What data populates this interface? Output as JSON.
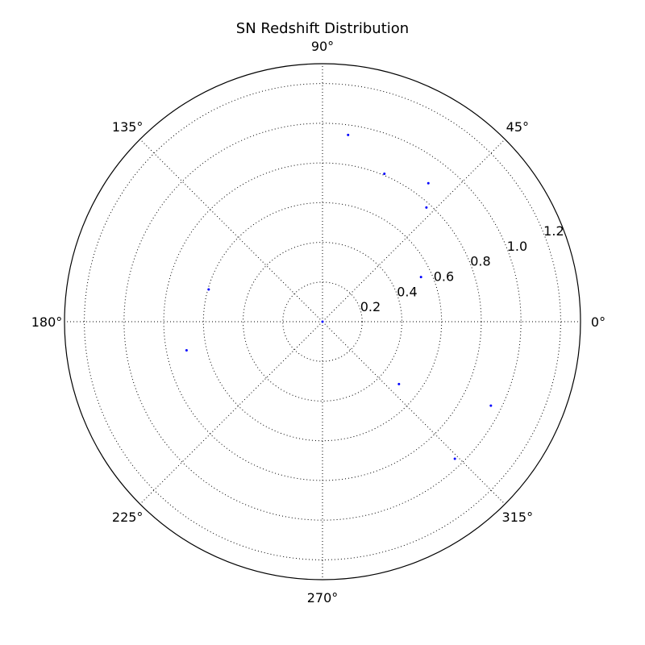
{
  "chart_data": {
    "type": "scatter",
    "projection": "polar",
    "title": "SN Redshift Distribution",
    "theta_unit": "degrees",
    "theta_ticks": [
      0,
      45,
      90,
      135,
      180,
      225,
      270,
      315
    ],
    "theta_tick_labels": [
      "0°",
      "45°",
      "90°",
      "135°",
      "180°",
      "225°",
      "270°",
      "315°"
    ],
    "r_ticks": [
      0.2,
      0.4,
      0.6,
      0.8,
      1.0,
      1.2
    ],
    "r_tick_labels": [
      "0.2",
      "0.4",
      "0.6",
      "0.8",
      "1.0",
      "1.2"
    ],
    "r_label_angle_deg": 22.5,
    "rlim": [
      0,
      1.3
    ],
    "grid": true,
    "marker_color": "#0000ff",
    "series": [
      {
        "points": [
          {
            "theta": 82.2,
            "r": 0.95
          },
          {
            "theta": 67.3,
            "r": 0.808
          },
          {
            "theta": 52.6,
            "r": 0.878
          },
          {
            "theta": 47.7,
            "r": 0.778
          },
          {
            "theta": 24.4,
            "r": 0.545
          },
          {
            "theta": 164.2,
            "r": 0.596
          },
          {
            "theta": 191.9,
            "r": 0.7
          },
          {
            "theta": 320.8,
            "r": 0.497
          },
          {
            "theta": 333.5,
            "r": 0.948
          },
          {
            "theta": 314.0,
            "r": 0.96
          },
          {
            "theta": 0.0,
            "r": 0.0
          }
        ]
      }
    ]
  }
}
